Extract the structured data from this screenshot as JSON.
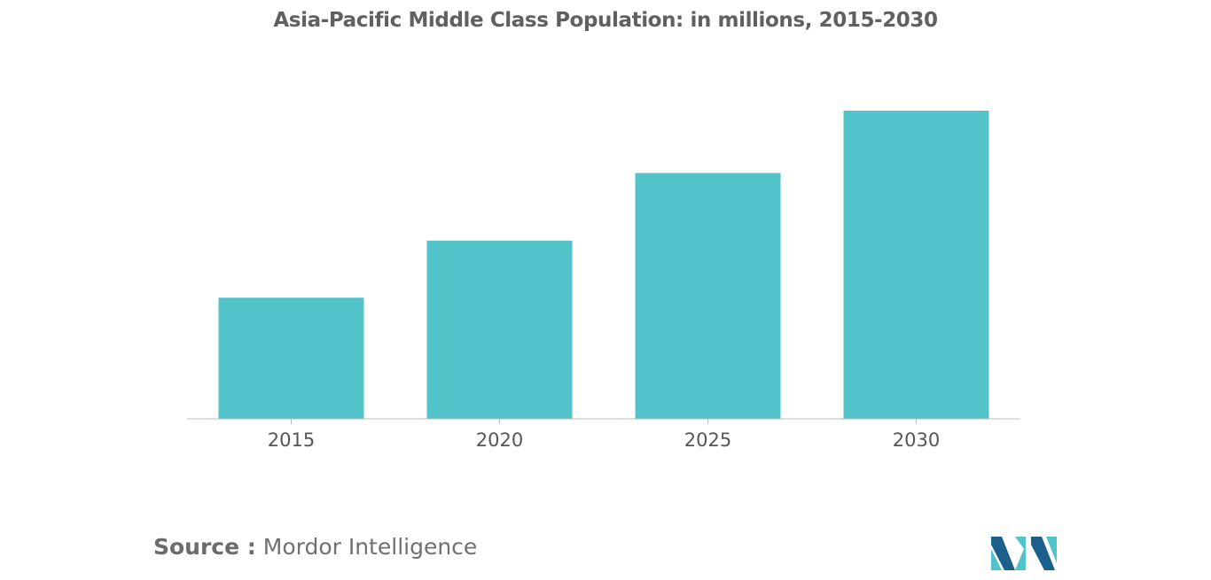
{
  "title": "Asia-Pacific Middle Class Population: in millions, 2015-2030",
  "source": {
    "label": "Source :",
    "text": "Mordor Intelligence"
  },
  "colors": {
    "bar": "#52C3C8",
    "axis": "#BBBBBB",
    "tick_text": "#555555",
    "logo_dark": "#1C5E8C",
    "logo_light": "#52C3C8"
  },
  "chart_data": {
    "type": "bar",
    "title": "Asia-Pacific Middle Class Population: in millions, 2015-2030",
    "categories": [
      "2015",
      "2020",
      "2025",
      "2030"
    ],
    "values": [
      1380,
      2030,
      2800,
      3510
    ],
    "xlabel": "",
    "ylabel": "",
    "ylim": [
      0,
      3510
    ],
    "grid": false,
    "legend": "none"
  }
}
